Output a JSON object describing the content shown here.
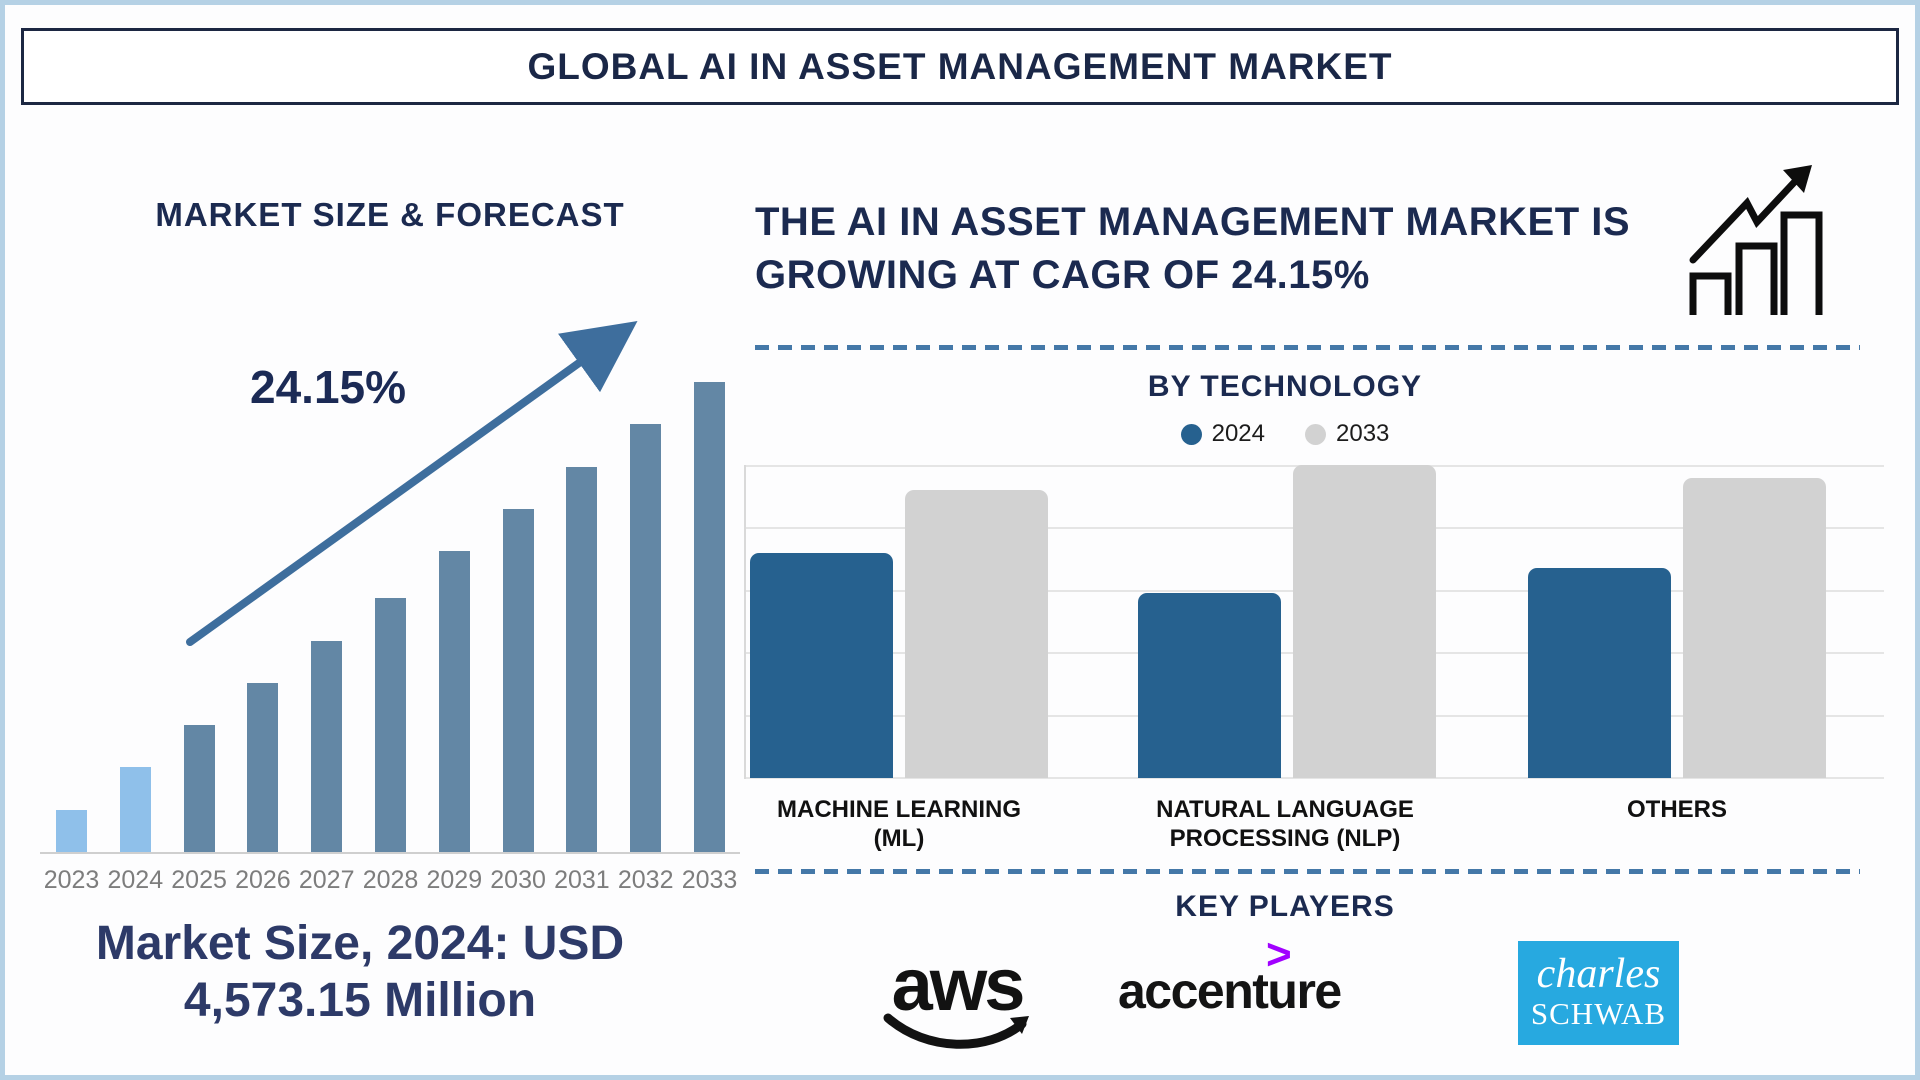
{
  "title": "GLOBAL AI IN ASSET MANAGEMENT MARKET",
  "left_panel": {
    "heading": "MARKET SIZE & FORECAST",
    "cagr_label": "24.15%",
    "market_size_line1": "Market Size, 2024: USD",
    "market_size_line2": "4,573.15 Million"
  },
  "right_panel": {
    "heading_line1": "THE AI IN ASSET MANAGEMENT MARKET IS",
    "heading_line2": "GROWING AT CAGR OF 24.15%",
    "growth_icon": "bar-chart-with-rising-arrow",
    "key_players": {
      "title": "KEY PLAYERS",
      "players": [
        {
          "name": "aws",
          "text": "aws"
        },
        {
          "name": "accenture",
          "symbol": ">",
          "text": "accenture"
        },
        {
          "name": "charles-schwab",
          "line1": "charles",
          "line2": "SCHWAB"
        }
      ]
    }
  },
  "colors": {
    "navy_text": "#1b2a50",
    "caption_navy": "#2d3a68",
    "light_blue_bar": "#8fc0ea",
    "steel_blue_bar": "#6387a5",
    "arrow_blue": "#3e6e9d",
    "tech_2024_blue": "#26618f",
    "tech_2033_gray": "#d2d2d2",
    "dashed_divider": "#4478a8",
    "schwab_blue": "#27a9e0",
    "accenture_purple": "#a100ff",
    "outer_border": "#b5d1e5",
    "year_label_gray": "#7d7d7d"
  },
  "chart_data": [
    {
      "id": "market-size-forecast",
      "type": "bar",
      "title": "MARKET SIZE & FORECAST",
      "categories": [
        "2023",
        "2024",
        "2025",
        "2026",
        "2027",
        "2028",
        "2029",
        "2030",
        "2031",
        "2032",
        "2033"
      ],
      "values": [
        9,
        18,
        27,
        36,
        45,
        54,
        64,
        73,
        82,
        91,
        100
      ],
      "values_unit": "relative bar height, 2033 = 100 (no y-axis labels shown)",
      "annotation": "24.15%",
      "market_size_2024_usd_million": 4573.15,
      "cagr_percent": 24.15,
      "highlight": "2023 and 2024 bars are light blue, 2025-2033 are steel blue",
      "xlabel": "",
      "ylabel": "",
      "grid": false
    },
    {
      "id": "by-technology",
      "type": "bar",
      "title": "BY TECHNOLOGY",
      "categories": [
        "MACHINE LEARNING (ML)",
        "NATURAL LANGUAGE PROCESSING (NLP)",
        "OTHERS"
      ],
      "series": [
        {
          "name": "2024",
          "color": "#26618f",
          "values": [
            72,
            59,
            67
          ]
        },
        {
          "name": "2033",
          "color": "#d2d2d2",
          "values": [
            92,
            100,
            96
          ]
        }
      ],
      "values_unit": "relative bar height, tallest bar (NLP 2033) = 100 (no y-axis labels shown)",
      "legend_position": "top-center",
      "grid": true,
      "gridlines": 6
    }
  ]
}
